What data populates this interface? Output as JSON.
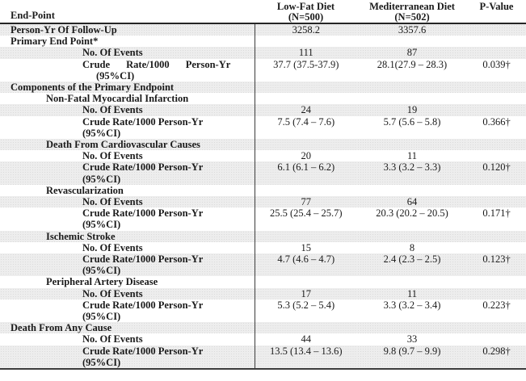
{
  "table": {
    "header": {
      "endpoint_label": "End-Point",
      "columns": [
        {
          "line1": "Low-Fat Diet",
          "line2": "(N=500)"
        },
        {
          "line1": "Mediterranean Diet",
          "line2": "(N=502)"
        },
        {
          "line1": "P-Value",
          "line2": ""
        }
      ]
    },
    "rows": [
      {
        "label": "Person-Yr Of Follow-Up",
        "indent": 0,
        "lowfat": "3258.2",
        "med": "3357.6",
        "p": ""
      },
      {
        "label": "Primary End Point*",
        "indent": 0,
        "lowfat": "",
        "med": "",
        "p": ""
      },
      {
        "label": "No. Of Events",
        "indent": 2,
        "lowfat": "111",
        "med": "87",
        "p": ""
      },
      {
        "label": "Crude Rate/1000 Person-Yr\n(95%CI)",
        "indent": 2,
        "justify": true,
        "lowfat": "37.7 (37.5-37.9)",
        "med": "28.1(27.9 – 28.3)",
        "p": "0.039†"
      },
      {
        "label": "Components of the Primary Endpoint",
        "indent": 0,
        "lowfat": "",
        "med": "",
        "p": ""
      },
      {
        "label": "Non-Fatal Myocardial Infarction",
        "indent": 1,
        "lowfat": "",
        "med": "",
        "p": ""
      },
      {
        "label": "No. Of Events",
        "indent": 2,
        "lowfat": "24",
        "med": "19",
        "p": ""
      },
      {
        "label": "Crude Rate/1000 Person-Yr\n(95%CI)",
        "indent": 2,
        "lowfat": "7.5 (7.4 – 7.6)",
        "med": "5.7 (5.6 – 5.8)",
        "p": "0.366†"
      },
      {
        "label": "Death From Cardiovascular Causes",
        "indent": 1,
        "lowfat": "",
        "med": "",
        "p": ""
      },
      {
        "label": "No. Of Events",
        "indent": 2,
        "lowfat": "20",
        "med": "11",
        "p": ""
      },
      {
        "label": "Crude Rate/1000 Person-Yr\n(95%CI)",
        "indent": 2,
        "lowfat": "6.1 (6.1 – 6.2)",
        "med": "3.3 (3.2 – 3.3)",
        "p": "0.120†"
      },
      {
        "label": "Revascularization",
        "indent": 1,
        "lowfat": "",
        "med": "",
        "p": ""
      },
      {
        "label": "No. Of Events",
        "indent": 2,
        "lowfat": "77",
        "med": "64",
        "p": ""
      },
      {
        "label": "Crude Rate/1000 Person-Yr\n(95%CI)",
        "indent": 2,
        "lowfat": "25.5 (25.4 – 25.7)",
        "med": "20.3 (20.2 – 20.5)",
        "p": "0.171†"
      },
      {
        "label": "Ischemic Stroke",
        "indent": 1,
        "lowfat": "",
        "med": "",
        "p": ""
      },
      {
        "label": "No. Of Events",
        "indent": 2,
        "lowfat": "15",
        "med": "8",
        "p": ""
      },
      {
        "label": "Crude Rate/1000 Person-Yr\n(95%CI)",
        "indent": 2,
        "lowfat": "4.7 (4.6 – 4.7)",
        "med": "2.4 (2.3 – 2.5)",
        "p": "0.123†"
      },
      {
        "label": "Peripheral Artery Disease",
        "indent": 1,
        "lowfat": "",
        "med": "",
        "p": ""
      },
      {
        "label": "No. Of Events",
        "indent": 2,
        "lowfat": "17",
        "med": "11",
        "p": ""
      },
      {
        "label": "Crude Rate/1000 Person-Yr\n(95%CI)",
        "indent": 2,
        "lowfat": "5.3 (5.2 – 5.4)",
        "med": "3.3 (3.2 – 3.4)",
        "p": "0.223†"
      },
      {
        "label": "Death From Any Cause",
        "indent": 0,
        "lowfat": "",
        "med": "",
        "p": ""
      },
      {
        "label": "No. Of Events",
        "indent": 2,
        "lowfat": "44",
        "med": "33",
        "p": ""
      },
      {
        "label": "Crude Rate/1000 Person-Yr\n(95%CI)",
        "indent": 2,
        "lowfat": "13.5 (13.4 – 13.6)",
        "med": "9.8 (9.7 – 9.9)",
        "p": "0.298†"
      }
    ],
    "colors": {
      "row_shade": "#ededed",
      "shade_dot": "#dbdbdb",
      "header_rule": "#262626",
      "divider": "#3c3c3c",
      "text": "#1a1a1a"
    }
  }
}
